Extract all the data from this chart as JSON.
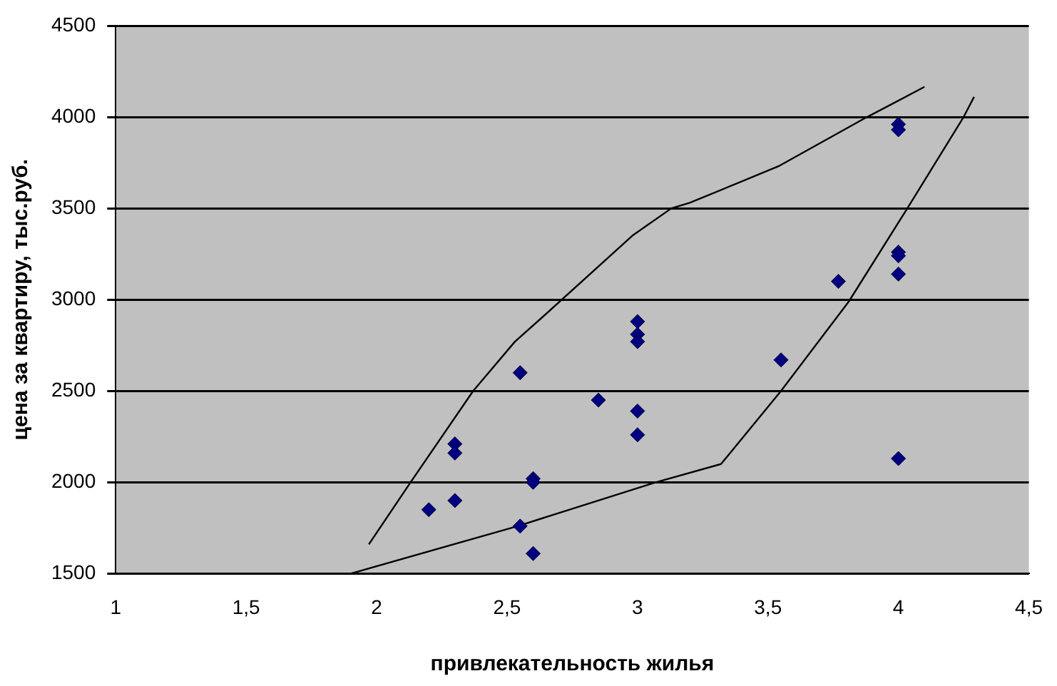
{
  "chart_data": {
    "type": "scatter",
    "xlabel": "привлекательность жилья",
    "ylabel": "цена за квартиру, тыс.руб.",
    "xlim": [
      1,
      4.5
    ],
    "xticks": [
      1,
      {
        "value": 1.5,
        "label": "1,5"
      },
      2,
      {
        "value": 2.5,
        "label": "2,5"
      },
      3,
      {
        "value": 3.5,
        "label": "3,5"
      },
      4,
      {
        "value": 4.5,
        "label": "4,5"
      }
    ],
    "ylim": [
      1500,
      4500
    ],
    "yticks": [
      1500,
      2000,
      2500,
      3000,
      3500,
      4000,
      4500
    ],
    "grid": "y",
    "marker": "diamond",
    "series": [
      {
        "color": "#000080",
        "x": [
          2.2,
          2.3,
          2.3,
          2.3,
          2.55,
          2.6,
          2.6,
          2.55,
          2.6,
          2.85,
          3,
          3,
          3,
          3,
          3,
          3.55,
          3.77,
          4,
          4,
          4,
          4,
          4,
          4
        ],
        "values": [
          1850,
          1900,
          2210,
          2160,
          2600,
          2020,
          2000,
          1760,
          1610,
          2450,
          2880,
          2810,
          2770,
          2390,
          2260,
          2670,
          3100,
          3960,
          3930,
          3260,
          3240,
          3140,
          2130
        ]
      },
      {
        "type": "line",
        "color": "#000000",
        "marker": "none",
        "x": [
          1.97,
          2.13,
          2.37,
          2.53,
          2.64,
          2.98,
          3.13,
          3.2,
          3.54,
          3.88,
          4.1
        ],
        "values": [
          1660,
          2000,
          2500,
          2770,
          2910,
          3350,
          3500,
          3530,
          3730,
          4000,
          4165
        ]
      },
      {
        "type": "line",
        "color": "#000000",
        "marker": "none",
        "x": [
          1.9,
          2.54,
          3.07,
          3.32,
          3.55,
          3.81,
          4.03,
          4.25,
          4.29
        ],
        "values": [
          1500,
          1760,
          2000,
          2100,
          2500,
          2990,
          3490,
          4000,
          4110
        ]
      }
    ]
  }
}
